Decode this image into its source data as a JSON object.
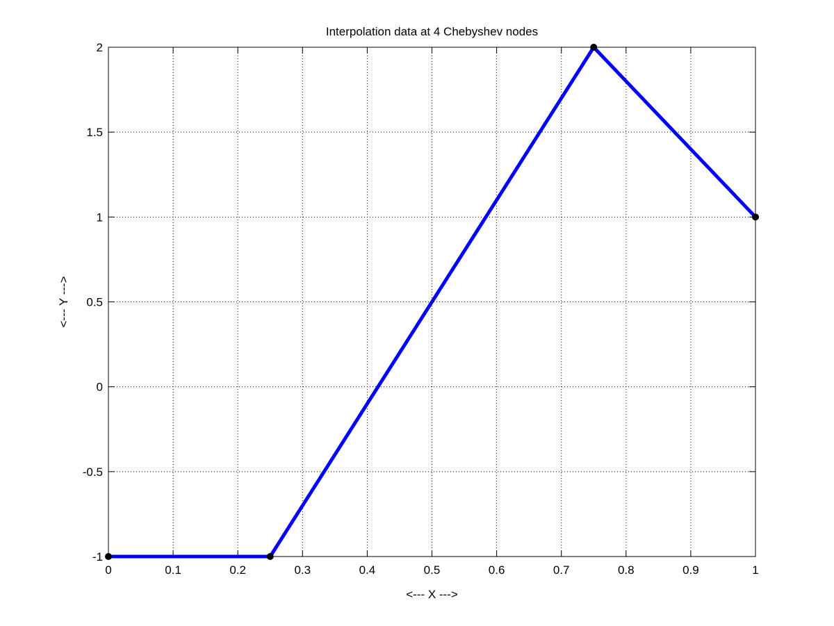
{
  "chart_data": {
    "type": "line",
    "title": "Interpolation data at 4 Chebyshev nodes",
    "xlabel": "<--- X --->",
    "ylabel": "<--- Y --->",
    "xlim": [
      0,
      1
    ],
    "ylim": [
      -1,
      2
    ],
    "xticks": [
      0,
      0.1,
      0.2,
      0.3,
      0.4,
      0.5,
      0.6,
      0.7,
      0.8,
      0.9,
      1
    ],
    "xtick_labels": [
      "0",
      "0.1",
      "0.2",
      "0.3",
      "0.4",
      "0.5",
      "0.6",
      "0.7",
      "0.8",
      "0.9",
      "1"
    ],
    "yticks": [
      -1,
      -0.5,
      0,
      0.5,
      1,
      1.5,
      2
    ],
    "ytick_labels": [
      "-1",
      "-0.5",
      "0",
      "0.5",
      "1",
      "1.5",
      "2"
    ],
    "grid": true,
    "grid_style": "dotted",
    "series": [
      {
        "x": [
          0,
          0.25,
          0.75,
          1
        ],
        "y": [
          -1,
          -1,
          2,
          1
        ],
        "line_color": "#0000ff",
        "marker_color": "#000000",
        "marker": "dot"
      }
    ]
  }
}
